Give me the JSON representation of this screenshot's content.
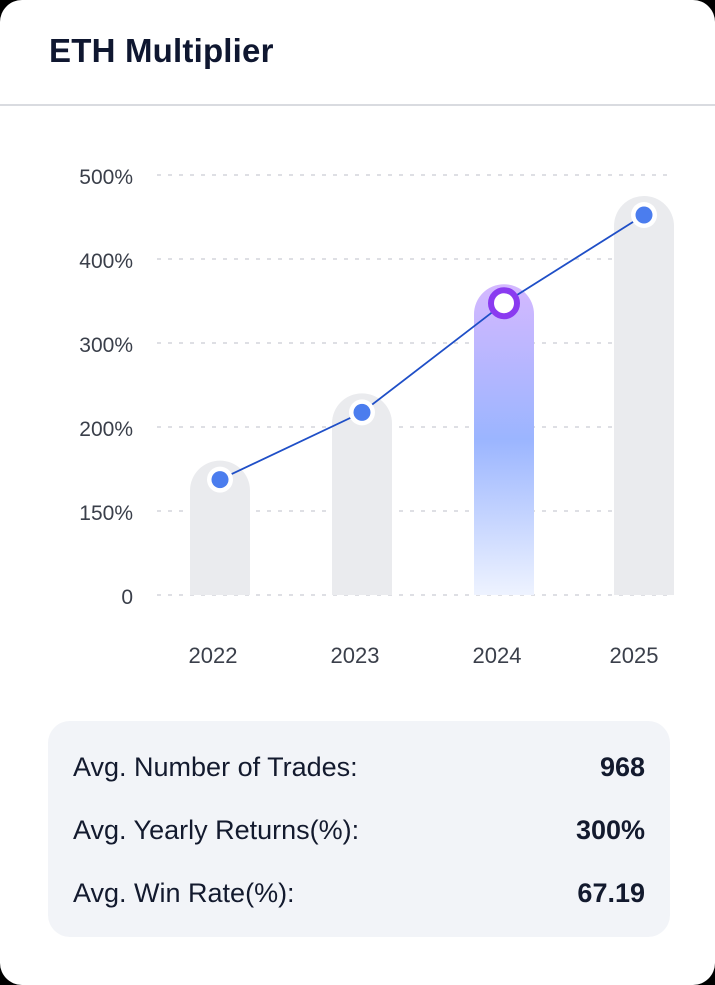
{
  "header": {
    "title": "ETH Multiplier"
  },
  "chart_data": {
    "type": "bar",
    "categories": [
      "2022",
      "2023",
      "2024",
      "2025"
    ],
    "y_ticks": [
      "500%",
      "400%",
      "300%",
      "200%",
      "150%",
      "0"
    ],
    "values": [
      160,
      240,
      370,
      475
    ],
    "series": [
      {
        "values": [
          160,
          240,
          370,
          475
        ]
      }
    ],
    "highlight_index": 2,
    "ylim": [
      0,
      500
    ],
    "grid": true,
    "colors": {
      "bar": "#eaebee",
      "highlight_top": "#d4b8ff",
      "highlight_mid": "#9bb5ff",
      "highlight_bottom": "#eef3ff",
      "line": "#1f4fc7",
      "point": "#4b7dee",
      "highlight_point": "#8a3bf0"
    }
  },
  "stats": {
    "rows": [
      {
        "label": "Avg. Number of Trades:",
        "value": "968"
      },
      {
        "label": "Avg. Yearly Returns(%):",
        "value": "300%"
      },
      {
        "label": "Avg. Win Rate(%):",
        "value": "67.19"
      }
    ]
  }
}
